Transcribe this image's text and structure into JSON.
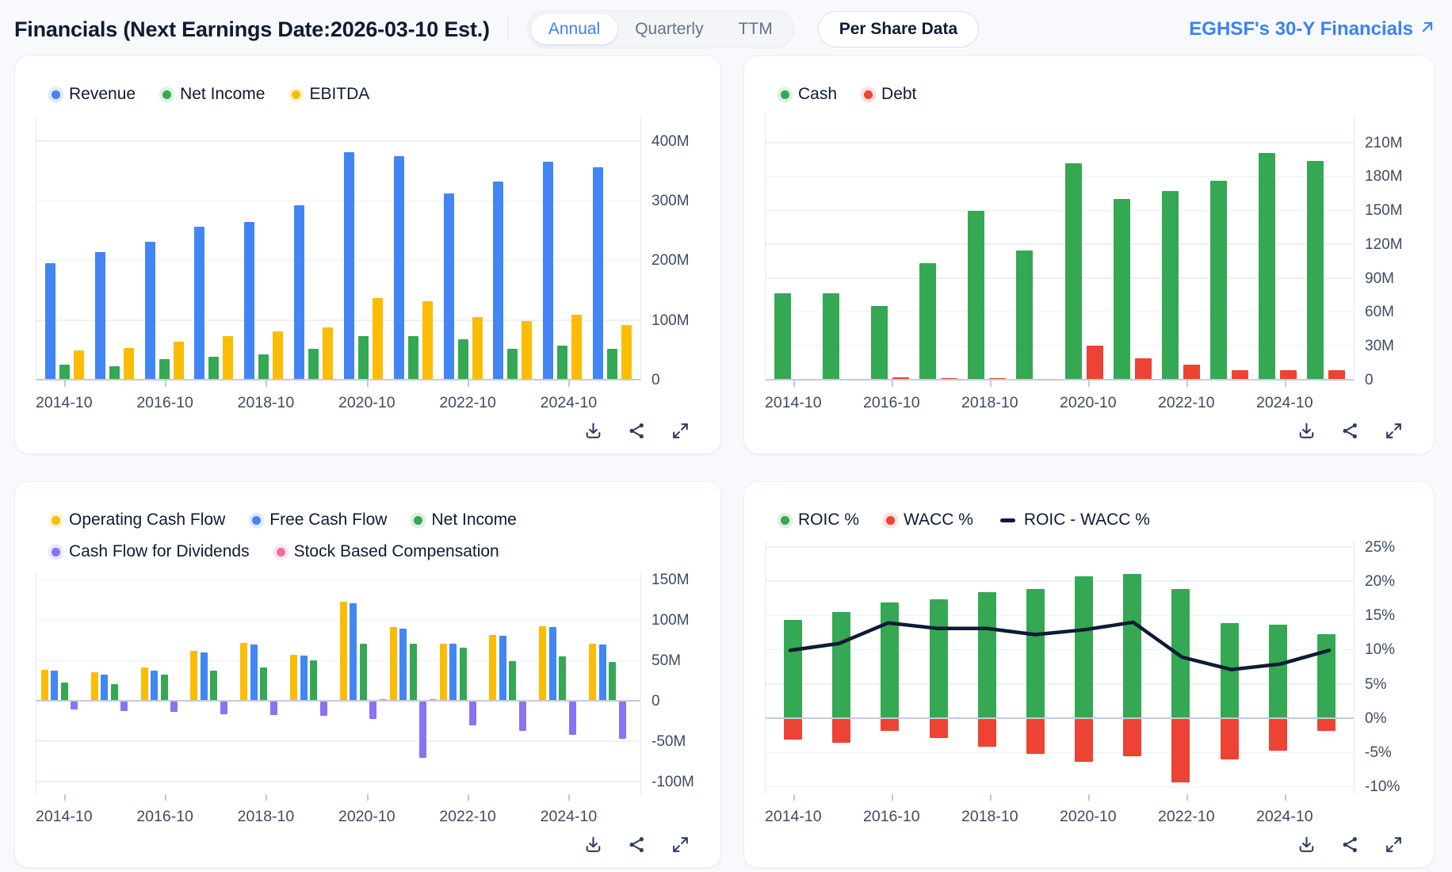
{
  "header": {
    "title": "Financials (Next Earnings Date:2026-03-10 Est.)",
    "tabs": [
      "Annual",
      "Quarterly",
      "TTM"
    ],
    "active_tab": "Annual",
    "per_share_button": "Per Share Data",
    "financials_link": "EGHSF's 30-Y Financials"
  },
  "colors": {
    "accent_blue": "#3b82f6",
    "bar_blue": "#4285F4",
    "bar_green": "#34A853",
    "bar_yellow": "#FBBC05",
    "bar_red": "#EC4335",
    "bar_purple": "#8A72F4",
    "bar_pink": "#F46BA9",
    "line_navy": "#0E1B33",
    "icon_gray": "#2f3e5c"
  },
  "icons": {
    "download": "download-icon",
    "share": "share-icon",
    "expand": "expand-icon",
    "external_link": "arrow-up-right-icon"
  },
  "chart_data": [
    {
      "type": "bar",
      "title": "Revenue / Net Income / EBITDA",
      "categories": [
        "2014-10",
        "2015-10",
        "2016-10",
        "2017-10",
        "2018-10",
        "2019-10",
        "2020-10",
        "2021-10",
        "2022-10",
        "2023-10",
        "2024-10",
        "2025-10"
      ],
      "x_tick_labels": [
        "2014-10",
        "2016-10",
        "2018-10",
        "2020-10",
        "2022-10",
        "2024-10"
      ],
      "series": [
        {
          "name": "Revenue",
          "color": "#4285F4",
          "values": [
            197,
            215,
            233,
            258,
            266,
            293,
            383,
            376,
            313,
            334,
            366,
            358
          ]
        },
        {
          "name": "Net Income",
          "color": "#34A853",
          "values": [
            26,
            24,
            36,
            40,
            44,
            53,
            74,
            74,
            69,
            53,
            59,
            53
          ]
        },
        {
          "name": "EBITDA",
          "color": "#FBBC05",
          "values": [
            50,
            55,
            65,
            74,
            82,
            89,
            138,
            133,
            106,
            100,
            110,
            93
          ]
        }
      ],
      "ylim": [
        0,
        445
      ],
      "yticks": [
        0,
        100,
        200,
        300,
        400
      ],
      "ytick_labels": [
        "0",
        "100M",
        "200M",
        "300M",
        "400M"
      ],
      "legend_position": "top",
      "grid": true
    },
    {
      "type": "bar",
      "title": "Cash / Debt",
      "categories": [
        "2014-10",
        "2015-10",
        "2016-10",
        "2017-10",
        "2018-10",
        "2019-10",
        "2020-10",
        "2021-10",
        "2022-10",
        "2023-10",
        "2024-10",
        "2025-10"
      ],
      "x_tick_labels": [
        "2014-10",
        "2016-10",
        "2018-10",
        "2020-10",
        "2022-10",
        "2024-10"
      ],
      "series": [
        {
          "name": "Cash",
          "color": "#34A853",
          "values": [
            77,
            77,
            66,
            104,
            150,
            115,
            192,
            161,
            168,
            177,
            201,
            194
          ]
        },
        {
          "name": "Debt",
          "color": "#EC4335",
          "values": [
            0,
            0,
            3,
            2,
            2,
            1,
            31,
            20,
            14,
            9,
            9,
            9
          ]
        }
      ],
      "ylim": [
        0,
        235
      ],
      "yticks": [
        0,
        30,
        60,
        90,
        120,
        150,
        180,
        210
      ],
      "ytick_labels": [
        "0",
        "30M",
        "60M",
        "90M",
        "120M",
        "150M",
        "180M",
        "210M"
      ],
      "legend_position": "top",
      "grid": true
    },
    {
      "type": "bar",
      "title": "Cash Flow",
      "categories": [
        "2014-10",
        "2015-10",
        "2016-10",
        "2017-10",
        "2018-10",
        "2019-10",
        "2020-10",
        "2021-10",
        "2022-10",
        "2023-10",
        "2024-10",
        "2025-10"
      ],
      "x_tick_labels": [
        "2014-10",
        "2016-10",
        "2018-10",
        "2020-10",
        "2022-10",
        "2024-10"
      ],
      "series": [
        {
          "name": "Operating Cash Flow",
          "color": "#FBBC05",
          "values": [
            39,
            36,
            42,
            63,
            73,
            58,
            124,
            92,
            72,
            82,
            93,
            72
          ]
        },
        {
          "name": "Free Cash Flow",
          "color": "#4285F4",
          "values": [
            38,
            33,
            38,
            61,
            71,
            57,
            122,
            90,
            72,
            81,
            92,
            71
          ]
        },
        {
          "name": "Net Income",
          "color": "#34A853",
          "values": [
            24,
            22,
            33,
            38,
            42,
            51,
            72,
            72,
            67,
            50,
            56,
            49
          ]
        },
        {
          "name": "Cash Flow for Dividends",
          "color": "#8A72F4",
          "values": [
            -10,
            -12,
            -13,
            -16,
            -17,
            -18,
            -22,
            -70,
            -30,
            -36,
            -41,
            -46
          ]
        },
        {
          "name": "Stock Based Compensation",
          "color": "#F46BA9",
          "values": [
            1.5,
            1.5,
            1.5,
            2,
            2,
            2,
            3,
            3,
            2,
            2,
            2,
            2
          ]
        }
      ],
      "ylim": [
        -115,
        160
      ],
      "yticks": [
        -100,
        -50,
        0,
        50,
        100,
        150
      ],
      "ytick_labels": [
        "-100M",
        "-50M",
        "0",
        "50M",
        "100M",
        "150M"
      ],
      "legend_position": "top",
      "grid": true
    },
    {
      "type": "bar+line",
      "title": "ROIC vs WACC",
      "overlap": true,
      "categories": [
        "2014-10",
        "2015-10",
        "2016-10",
        "2017-10",
        "2018-10",
        "2019-10",
        "2020-10",
        "2021-10",
        "2022-10",
        "2023-10",
        "2024-10",
        "2025-10"
      ],
      "x_tick_labels": [
        "2014-10",
        "2016-10",
        "2018-10",
        "2020-10",
        "2022-10",
        "2024-10"
      ],
      "series": [
        {
          "name": "ROIC %",
          "color": "#34A853",
          "values": [
            14.4,
            15.6,
            17.0,
            17.4,
            18.5,
            19.0,
            20.8,
            21.1,
            19.0,
            14.0,
            13.7,
            12.4
          ]
        },
        {
          "name": "WACC %",
          "color": "#EC4335",
          "values": [
            -3.0,
            -3.5,
            -1.8,
            -2.8,
            -4.1,
            -5.1,
            -6.3,
            -5.5,
            -9.3,
            -5.9,
            -4.6,
            -1.8
          ]
        }
      ],
      "line": {
        "name": "ROIC - WACC %",
        "color": "#0E1B33",
        "values": [
          10.0,
          11.0,
          14.0,
          13.2,
          13.2,
          12.3,
          13.0,
          14.1,
          9.0,
          7.2,
          8.0,
          10.0
        ]
      },
      "ylim": [
        -11,
        26
      ],
      "yticks": [
        -10,
        -5,
        0,
        5,
        10,
        15,
        20,
        25
      ],
      "ytick_labels": [
        "-10%",
        "-5%",
        "0%",
        "5%",
        "10%",
        "15%",
        "20%",
        "25%"
      ],
      "legend_position": "top",
      "grid": true
    }
  ]
}
